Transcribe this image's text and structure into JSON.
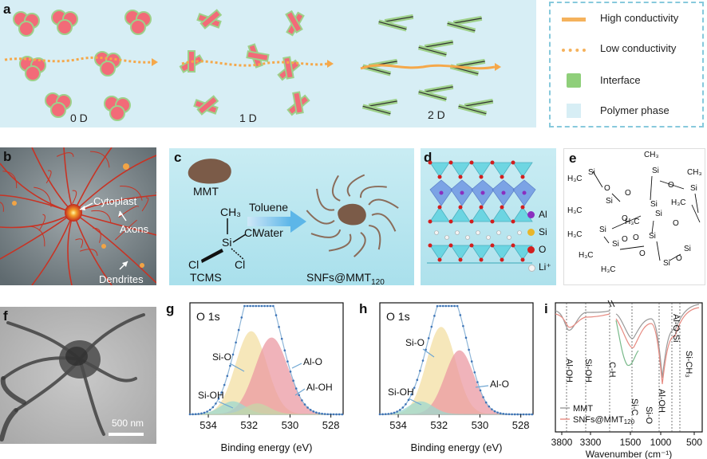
{
  "panel_labels": {
    "a": "a",
    "b": "b",
    "c": "c",
    "d": "d",
    "e": "e",
    "f": "f",
    "g": "g",
    "h": "h",
    "i": "i"
  },
  "panel_a": {
    "dims": [
      "0 D",
      "1 D",
      "2 D"
    ],
    "legend": [
      {
        "label": "High conductivity",
        "color": "#f5b25c",
        "style": "solid"
      },
      {
        "label": "Low conductivity",
        "color": "#f5b25c",
        "style": "dotted"
      },
      {
        "label": "Interface",
        "color": "#8fcf7a",
        "style": "box"
      },
      {
        "label": "Polymer phase",
        "color": "#d7eef5",
        "style": "box"
      }
    ]
  },
  "panel_b": {
    "labels": [
      "Cytoplast",
      "Axons",
      "Dendrites"
    ]
  },
  "panel_c": {
    "mmt": "MMT",
    "ch3": "CH₃",
    "si": "Si",
    "cl": "Cl",
    "tcms": "TCMS",
    "solvent1": "Toluene",
    "solvent2": "Water",
    "product": "SNFs@MMT",
    "product_sub": "120"
  },
  "panel_d": {
    "legend": [
      {
        "label": "Al",
        "color": "#8a2fbf"
      },
      {
        "label": "Si",
        "color": "#e8b62a"
      },
      {
        "label": "O",
        "color": "#d21e1e"
      },
      {
        "label": "Li⁺",
        "color": "#f3f3f3"
      }
    ]
  },
  "panel_f": {
    "scale": "500 nm"
  },
  "panel_g": {
    "title": "O 1s",
    "xlabel": "Binding energy (eV)",
    "ticks": [
      "534",
      "532",
      "530",
      "528"
    ],
    "peaks": [
      "Si-O",
      "Al-O",
      "Si-OH",
      "Al-OH"
    ]
  },
  "panel_h": {
    "title": "O 1s",
    "xlabel": "Binding energy (eV)",
    "ticks": [
      "534",
      "532",
      "530",
      "528"
    ],
    "peaks": [
      "Si-O",
      "Si-OH",
      "Al-O"
    ]
  },
  "panel_i": {
    "xlabel": "Wavenumber (cm⁻¹)",
    "ticks": [
      "3800",
      "3300",
      "1500",
      "1000",
      "500"
    ],
    "bands": [
      "Al-OH",
      "Si-OH",
      "C-H",
      "Si-C",
      "Si-O",
      "Al-OH",
      "Al-O-Si",
      "Si-CH₃"
    ],
    "legend": [
      "MMT",
      "SNFs@MMT"
    ],
    "legend_sub": "120"
  },
  "chart_data": [
    {
      "type": "area",
      "title": "O 1s",
      "xlabel": "Binding energy (eV)",
      "xlim": [
        534.9,
        527.4
      ],
      "series": [
        {
          "name": "Si-O",
          "center": 531.9,
          "height": 0.78,
          "width": 0.75,
          "color": "#f3dfa4"
        },
        {
          "name": "Al-O",
          "center": 530.9,
          "height": 0.72,
          "width": 0.8,
          "color": "#ec9aa3"
        },
        {
          "name": "Si-OH",
          "center": 532.8,
          "height": 0.12,
          "width": 0.6,
          "color": "#9fd9cf"
        },
        {
          "name": "Al-OH",
          "center": 531.6,
          "height": 0.1,
          "width": 0.6,
          "color": "#c6d7a8"
        }
      ]
    },
    {
      "type": "area",
      "title": "O 1s",
      "xlabel": "Binding energy (eV)",
      "xlim": [
        534.9,
        527.4
      ],
      "series": [
        {
          "name": "Si-O",
          "center": 531.9,
          "height": 0.82,
          "width": 0.7,
          "color": "#f3dfa4"
        },
        {
          "name": "Al-O",
          "center": 531.0,
          "height": 0.6,
          "width": 0.7,
          "color": "#ec9aa3"
        },
        {
          "name": "Si-OH",
          "center": 532.9,
          "height": 0.12,
          "width": 0.6,
          "color": "#9fd9cf"
        }
      ]
    },
    {
      "type": "line",
      "xlabel": "Wavenumber (cm⁻¹)",
      "series": [
        {
          "name": "MMT",
          "color": "#999999"
        },
        {
          "name": "SNFs@MMT120",
          "color": "#e78b82"
        }
      ]
    }
  ]
}
